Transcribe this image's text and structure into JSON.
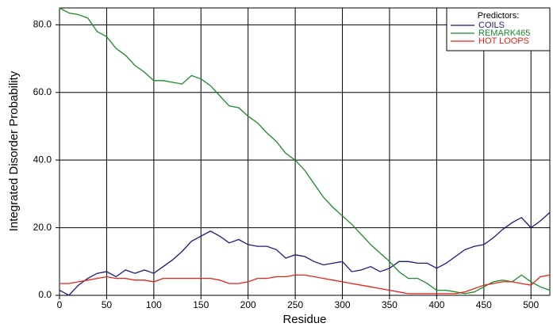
{
  "chart_data": {
    "type": "line",
    "x_label": "Residue",
    "y_label": "Integrated Disorder Probability",
    "legend_title": "Predictors:",
    "legend": "upper right",
    "grid": true,
    "xlim": [
      0,
      520
    ],
    "ylim": [
      0,
      85
    ],
    "xticks": [
      0,
      50,
      100,
      150,
      200,
      250,
      300,
      350,
      400,
      450,
      500
    ],
    "yticks": [
      {
        "value": 0,
        "label": "0.0"
      },
      {
        "value": 20,
        "label": "20.0"
      },
      {
        "value": 40,
        "label": "40.0"
      },
      {
        "value": 60,
        "label": "60.0"
      },
      {
        "value": 80,
        "label": "80.0"
      }
    ],
    "x": [
      0,
      10,
      20,
      30,
      40,
      50,
      60,
      70,
      80,
      90,
      100,
      110,
      120,
      130,
      140,
      150,
      160,
      170,
      180,
      190,
      200,
      210,
      220,
      230,
      240,
      250,
      260,
      270,
      280,
      290,
      300,
      310,
      320,
      330,
      340,
      350,
      360,
      370,
      380,
      390,
      400,
      410,
      420,
      430,
      440,
      450,
      460,
      470,
      480,
      490,
      500,
      510,
      520
    ],
    "series": [
      {
        "name": "COILS",
        "color": "#1a1a80",
        "values": [
          1.5,
          0,
          3,
          5,
          6.5,
          7,
          5.5,
          7.5,
          6.5,
          7.5,
          6.5,
          8.5,
          10.5,
          13,
          16,
          17.5,
          19,
          17.5,
          15.5,
          16.5,
          15,
          14.5,
          14.5,
          13.5,
          11,
          12,
          11.5,
          10,
          9,
          9.5,
          10,
          7,
          7.5,
          8.5,
          7,
          8,
          10,
          10,
          9.5,
          9.5,
          8,
          9.5,
          11.5,
          13.5,
          14.5,
          15,
          17,
          19.5,
          21.5,
          23,
          20,
          22,
          24.5
        ]
      },
      {
        "name": "REMARK465",
        "color": "#1a8a2a",
        "values": [
          85,
          83.5,
          83,
          82,
          78,
          76.5,
          73,
          71,
          68,
          66,
          63.5,
          63.5,
          63,
          62.5,
          65,
          64,
          62,
          59,
          56,
          55.5,
          53,
          51,
          48,
          45.5,
          42,
          40,
          37,
          33,
          29,
          26,
          23.5,
          21,
          18,
          15,
          12.5,
          10,
          7,
          5,
          5,
          3.5,
          1.5,
          1.5,
          1,
          0.5,
          1,
          2.5,
          4,
          4.5,
          4,
          6,
          4,
          2.5,
          1.5
        ]
      },
      {
        "name": "HOT LOOPS",
        "color": "#e8201a",
        "values": [
          3.5,
          3.5,
          4,
          4.5,
          5,
          5.5,
          5,
          5,
          4.5,
          4.5,
          4,
          5,
          5,
          5,
          5,
          5,
          5,
          4.5,
          3.5,
          3.5,
          4,
          5,
          5,
          5.5,
          5.5,
          6,
          6,
          5.5,
          5,
          4.5,
          4,
          3.5,
          3,
          2.5,
          2,
          1.5,
          1,
          0.5,
          0.5,
          0.5,
          0.5,
          0.5,
          0.5,
          1,
          2,
          3,
          3.5,
          4,
          4,
          3.5,
          3,
          5.5,
          6
        ]
      }
    ]
  }
}
